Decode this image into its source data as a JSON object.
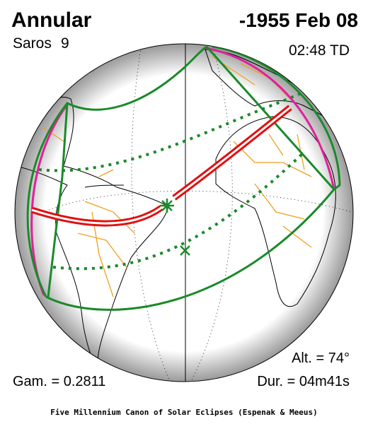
{
  "header": {
    "eclipse_type": "Annular",
    "date": "-1955 Feb 08",
    "saros_label": "Saros",
    "saros_number": "9",
    "time": "02:48 TD"
  },
  "stats": {
    "altitude": "Alt. = 74°",
    "gamma": "Gam. = 0.2811",
    "duration": "Dur. = 04m41s"
  },
  "footer": {
    "credit": "Five Millennium Canon of Solar Eclipses (Espenak & Meeus)"
  }
}
